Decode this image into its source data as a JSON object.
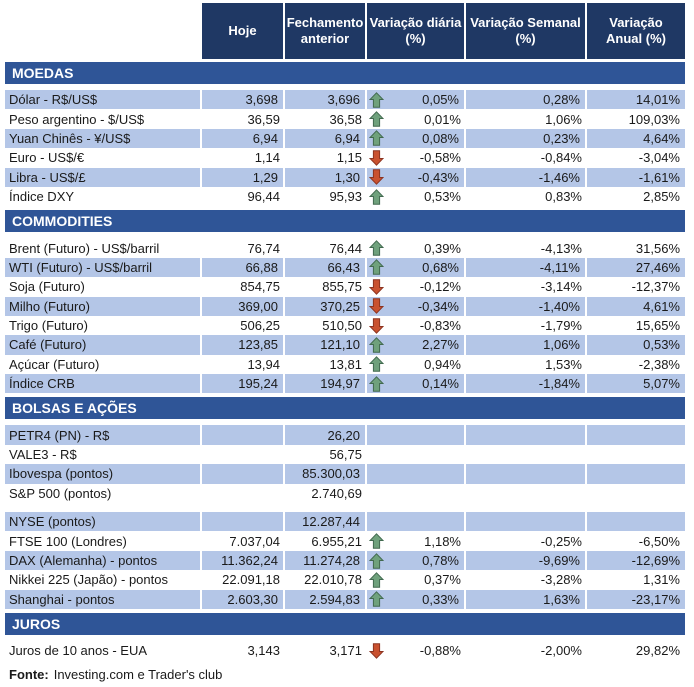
{
  "table": {
    "columns": [
      "",
      "Hoje",
      "Fechamento\nanterior",
      "Variação diária\n(%)",
      "Variação Semanal\n(%)",
      "Variação\nAnual (%)"
    ],
    "sections": [
      {
        "title": "MOEDAS",
        "rows": [
          {
            "label": "Dólar - R$/US$",
            "hoje": "3,698",
            "fechamento": "3,696",
            "arrow": "up",
            "var_diaria": "0,05%",
            "var_semanal": "0,28%",
            "var_anual": "14,01%"
          },
          {
            "label": "Peso argentino - $/US$",
            "hoje": "36,59",
            "fechamento": "36,58",
            "arrow": "up",
            "var_diaria": "0,01%",
            "var_semanal": "1,06%",
            "var_anual": "109,03%"
          },
          {
            "label": "Yuan Chinês - ¥/US$",
            "hoje": "6,94",
            "fechamento": "6,94",
            "arrow": "up",
            "var_diaria": "0,08%",
            "var_semanal": "0,23%",
            "var_anual": "4,64%"
          },
          {
            "label": "Euro - US$/€",
            "hoje": "1,14",
            "fechamento": "1,15",
            "arrow": "down",
            "var_diaria": "-0,58%",
            "var_semanal": "-0,84%",
            "var_anual": "-3,04%"
          },
          {
            "label": "Libra - US$/£",
            "hoje": "1,29",
            "fechamento": "1,30",
            "arrow": "down",
            "var_diaria": "-0,43%",
            "var_semanal": "-1,46%",
            "var_anual": "-1,61%"
          },
          {
            "label": "Índice DXY",
            "hoje": "96,44",
            "fechamento": "95,93",
            "arrow": "up",
            "var_diaria": "0,53%",
            "var_semanal": "0,83%",
            "var_anual": "2,85%"
          }
        ]
      },
      {
        "title": "COMMODITIES",
        "rows": [
          {
            "label": "Brent (Futuro) - US$/barril",
            "hoje": "76,74",
            "fechamento": "76,44",
            "arrow": "up",
            "var_diaria": "0,39%",
            "var_semanal": "-4,13%",
            "var_anual": "31,56%"
          },
          {
            "label": "WTI (Futuro) - US$/barril",
            "hoje": "66,88",
            "fechamento": "66,43",
            "arrow": "up",
            "var_diaria": "0,68%",
            "var_semanal": "-4,11%",
            "var_anual": "27,46%"
          },
          {
            "label": "Soja (Futuro)",
            "hoje": "854,75",
            "fechamento": "855,75",
            "arrow": "down",
            "var_diaria": "-0,12%",
            "var_semanal": "-3,14%",
            "var_anual": "-12,37%"
          },
          {
            "label": "Milho (Futuro)",
            "hoje": "369,00",
            "fechamento": "370,25",
            "arrow": "down",
            "var_diaria": "-0,34%",
            "var_semanal": "-1,40%",
            "var_anual": "4,61%"
          },
          {
            "label": "Trigo (Futuro)",
            "hoje": "506,25",
            "fechamento": "510,50",
            "arrow": "down",
            "var_diaria": "-0,83%",
            "var_semanal": "-1,79%",
            "var_anual": "15,65%"
          },
          {
            "label": "Café (Futuro)",
            "hoje": "123,85",
            "fechamento": "121,10",
            "arrow": "up",
            "var_diaria": "2,27%",
            "var_semanal": "1,06%",
            "var_anual": "0,53%"
          },
          {
            "label": "Açúcar (Futuro)",
            "hoje": "13,94",
            "fechamento": "13,81",
            "arrow": "up",
            "var_diaria": "0,94%",
            "var_semanal": "1,53%",
            "var_anual": "-2,38%"
          },
          {
            "label": "Índice CRB",
            "hoje": "195,24",
            "fechamento": "194,97",
            "arrow": "up",
            "var_diaria": "0,14%",
            "var_semanal": "-1,84%",
            "var_anual": "5,07%"
          }
        ]
      },
      {
        "title": "BOLSAS E AÇÕES",
        "rows": [
          {
            "label": "PETR4 (PN) - R$",
            "hoje": "",
            "fechamento": "26,20",
            "arrow": null,
            "var_diaria": "",
            "var_semanal": "",
            "var_anual": ""
          },
          {
            "label": "VALE3 - R$",
            "hoje": "",
            "fechamento": "56,75",
            "arrow": null,
            "var_diaria": "",
            "var_semanal": "",
            "var_anual": ""
          },
          {
            "label": "Ibovespa (pontos)",
            "hoje": "",
            "fechamento": "85.300,03",
            "arrow": null,
            "var_diaria": "",
            "var_semanal": "",
            "var_anual": ""
          },
          {
            "label": "S&P 500 (pontos)",
            "hoje": "",
            "fechamento": "2.740,69",
            "arrow": null,
            "var_diaria": "",
            "var_semanal": "",
            "var_anual": "",
            "spacer_after": true
          },
          {
            "label": "NYSE (pontos)",
            "hoje": "",
            "fechamento": "12.287,44",
            "arrow": null,
            "var_diaria": "",
            "var_semanal": "",
            "var_anual": ""
          },
          {
            "label": "FTSE 100 (Londres)",
            "hoje": "7.037,04",
            "fechamento": "6.955,21",
            "arrow": "up",
            "var_diaria": "1,18%",
            "var_semanal": "-0,25%",
            "var_anual": "-6,50%"
          },
          {
            "label": "DAX (Alemanha) - pontos",
            "hoje": "11.362,24",
            "fechamento": "11.274,28",
            "arrow": "up",
            "var_diaria": "0,78%",
            "var_semanal": "-9,69%",
            "var_anual": "-12,69%"
          },
          {
            "label": "Nikkei 225 (Japão) - pontos",
            "hoje": "22.091,18",
            "fechamento": "22.010,78",
            "arrow": "up",
            "var_diaria": "0,37%",
            "var_semanal": "-3,28%",
            "var_anual": "1,31%"
          },
          {
            "label": "Shanghai - pontos",
            "hoje": "2.603,30",
            "fechamento": "2.594,83",
            "arrow": "up",
            "var_diaria": "0,33%",
            "var_semanal": "1,63%",
            "var_anual": "-23,17%"
          }
        ]
      },
      {
        "title": "JUROS",
        "rows": [
          {
            "label": "Juros de 10 anos - EUA",
            "hoje": "3,143",
            "fechamento": "3,171",
            "arrow": "down",
            "var_diaria": "-0,88%",
            "var_semanal": "-2,00%",
            "var_anual": "29,82%"
          }
        ]
      }
    ],
    "footer": {
      "label": "Fonte:",
      "text": "Investing.com e Trader's club"
    }
  },
  "colors": {
    "header_bg": "#1F3864",
    "section_band_bg": "#2F5597",
    "stripe_row_bg": "#B4C6E7",
    "up_arrow": "#6FA17C",
    "down_arrow": "#C9512F",
    "text": "#1A1A1A"
  },
  "icons": {
    "up": "up-arrow-icon",
    "down": "down-arrow-icon"
  }
}
